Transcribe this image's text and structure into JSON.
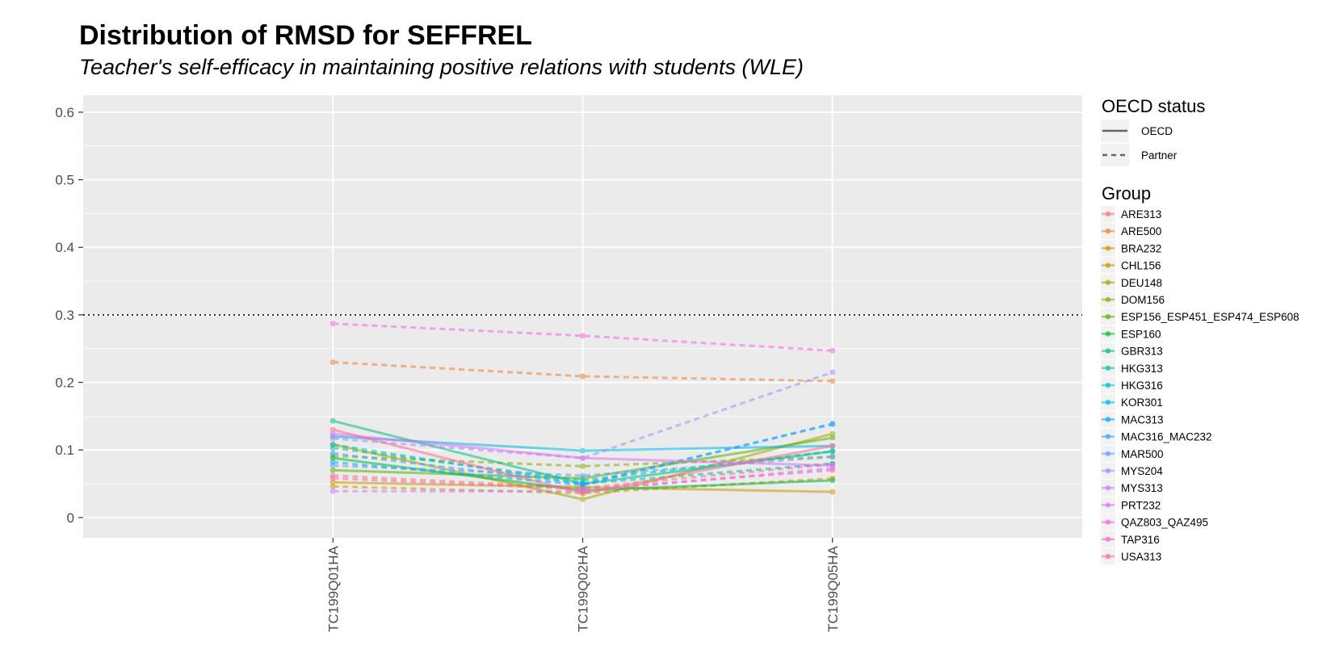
{
  "chart_data": {
    "type": "line",
    "title": "Distribution of RMSD for SEFFREL",
    "subtitle": "Teacher's self-efficacy in maintaining positive relations with students (WLE)",
    "xlabel": "",
    "ylabel": "",
    "categories": [
      "TC199Q01HA",
      "TC199Q02HA",
      "TC199Q05HA"
    ],
    "ylim": [
      -0.03,
      0.625
    ],
    "yticks": [
      "0",
      "0.1",
      "0.2",
      "0.3",
      "0.4",
      "0.5",
      "0.6"
    ],
    "ytick_values": [
      0,
      0.1,
      0.2,
      0.3,
      0.4,
      0.5,
      0.6
    ],
    "reference_line": 0.3,
    "grid": true,
    "legend_position": "right",
    "linetype_legend": {
      "title": "OECD status",
      "items": [
        {
          "label": "OECD",
          "dash": "solid"
        },
        {
          "label": "Partner",
          "dash": "dashed"
        }
      ]
    },
    "group_legend_title": "Group",
    "series": [
      {
        "name": "ARE313",
        "color": "#F8766D",
        "status": "Partner",
        "values": [
          0.062,
          0.044,
          0.079
        ]
      },
      {
        "name": "ARE500",
        "color": "#EB8335",
        "status": "Partner",
        "values": [
          0.23,
          0.209,
          0.202
        ]
      },
      {
        "name": "BRA232",
        "color": "#DA8F00",
        "status": "Partner",
        "values": [
          0.046,
          0.036,
          0.058
        ]
      },
      {
        "name": "CHL156",
        "color": "#C49A00",
        "status": "OECD",
        "values": [
          0.052,
          0.045,
          0.038
        ]
      },
      {
        "name": "DEU148",
        "color": "#A9A400",
        "status": "OECD",
        "values": [
          0.108,
          0.027,
          0.124
        ]
      },
      {
        "name": "DOM156",
        "color": "#86AC00",
        "status": "Partner",
        "values": [
          0.091,
          0.076,
          0.09
        ]
      },
      {
        "name": "ESP156_ESP451_ESP474_ESP608",
        "color": "#53B400",
        "status": "OECD",
        "values": [
          0.07,
          0.058,
          0.118
        ]
      },
      {
        "name": "ESP160",
        "color": "#00BA38",
        "status": "OECD",
        "values": [
          0.088,
          0.04,
          0.055
        ]
      },
      {
        "name": "GBR313",
        "color": "#00BF7D",
        "status": "OECD",
        "values": [
          0.143,
          0.05,
          0.098
        ]
      },
      {
        "name": "HKG313",
        "color": "#00C1A7",
        "status": "Partner",
        "values": [
          0.103,
          0.055,
          0.098
        ]
      },
      {
        "name": "HKG316",
        "color": "#00BFC4",
        "status": "Partner",
        "values": [
          0.108,
          0.05,
          0.08
        ]
      },
      {
        "name": "KOR301",
        "color": "#00B8E7",
        "status": "OECD",
        "values": [
          0.12,
          0.099,
          0.106
        ]
      },
      {
        "name": "MAC313",
        "color": "#00A9FF",
        "status": "Partner",
        "values": [
          0.082,
          0.048,
          0.139
        ]
      },
      {
        "name": "MAC316_MAC232",
        "color": "#35A2FF",
        "status": "Partner",
        "values": [
          0.095,
          0.05,
          0.138
        ]
      },
      {
        "name": "MAR500",
        "color": "#619CFF",
        "status": "Partner",
        "values": [
          0.077,
          0.062,
          0.09
        ]
      },
      {
        "name": "MYS204",
        "color": "#A58AFF",
        "status": "Partner",
        "values": [
          0.117,
          0.088,
          0.215
        ]
      },
      {
        "name": "MYS313",
        "color": "#C77CFF",
        "status": "Partner",
        "values": [
          0.039,
          0.039,
          0.073
        ]
      },
      {
        "name": "PRT232",
        "color": "#DF70F8",
        "status": "OECD",
        "values": [
          0.124,
          0.088,
          0.077
        ]
      },
      {
        "name": "QAZ803_QAZ495",
        "color": "#F265E7",
        "status": "Partner",
        "values": [
          0.287,
          0.269,
          0.247
        ]
      },
      {
        "name": "TAP316",
        "color": "#FF61C3",
        "status": "Partner",
        "values": [
          0.058,
          0.042,
          0.07
        ]
      },
      {
        "name": "USA313",
        "color": "#FF6C91",
        "status": "OECD",
        "values": [
          0.13,
          0.036,
          0.106
        ]
      }
    ]
  }
}
